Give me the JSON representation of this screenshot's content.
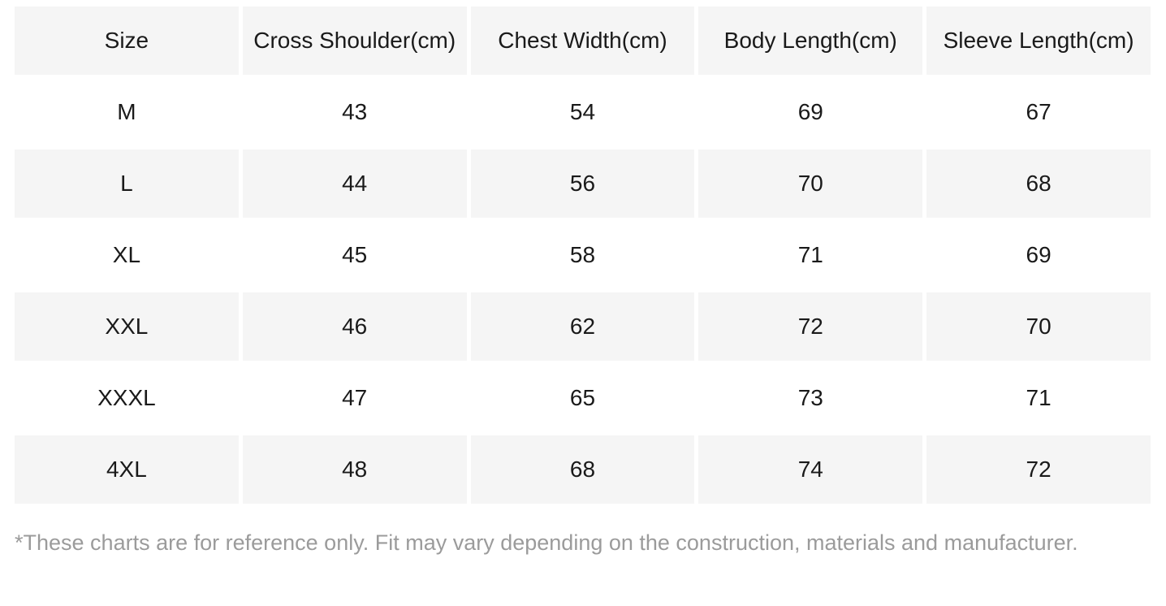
{
  "table": {
    "columns": [
      "Size",
      "Cross Shoulder(cm)",
      "Chest Width(cm)",
      "Body Length(cm)",
      "Sleeve Length(cm)"
    ],
    "rows": [
      [
        "M",
        "43",
        "54",
        "69",
        "67"
      ],
      [
        "L",
        "44",
        "56",
        "70",
        "68"
      ],
      [
        "XL",
        "45",
        "58",
        "71",
        "69"
      ],
      [
        "XXL",
        "46",
        "62",
        "72",
        "70"
      ],
      [
        "XXXL",
        "47",
        "65",
        "73",
        "71"
      ],
      [
        "4XL",
        "48",
        "68",
        "74",
        "72"
      ]
    ],
    "shaded_row_indices": [
      1,
      3,
      5
    ]
  },
  "footnote": {
    "text": "*These charts are for reference only. Fit may vary depending on the construction, materials and manufacturer."
  },
  "colors": {
    "header_bg": "#f5f5f5",
    "stripe_bg": "#f5f5f5",
    "row_bg": "#ffffff",
    "text": "#1a1a1a",
    "footnote_text": "#9b9b9b",
    "page_bg": "#ffffff"
  },
  "chart_data": {
    "type": "table",
    "title": "",
    "columns": [
      "Size",
      "Cross Shoulder(cm)",
      "Chest Width(cm)",
      "Body Length(cm)",
      "Sleeve Length(cm)"
    ],
    "rows": [
      [
        "M",
        43,
        54,
        69,
        67
      ],
      [
        "L",
        44,
        56,
        70,
        68
      ],
      [
        "XL",
        45,
        58,
        71,
        69
      ],
      [
        "XXL",
        46,
        62,
        72,
        70
      ],
      [
        "XXXL",
        47,
        65,
        73,
        71
      ],
      [
        "4XL",
        48,
        68,
        74,
        72
      ]
    ]
  }
}
